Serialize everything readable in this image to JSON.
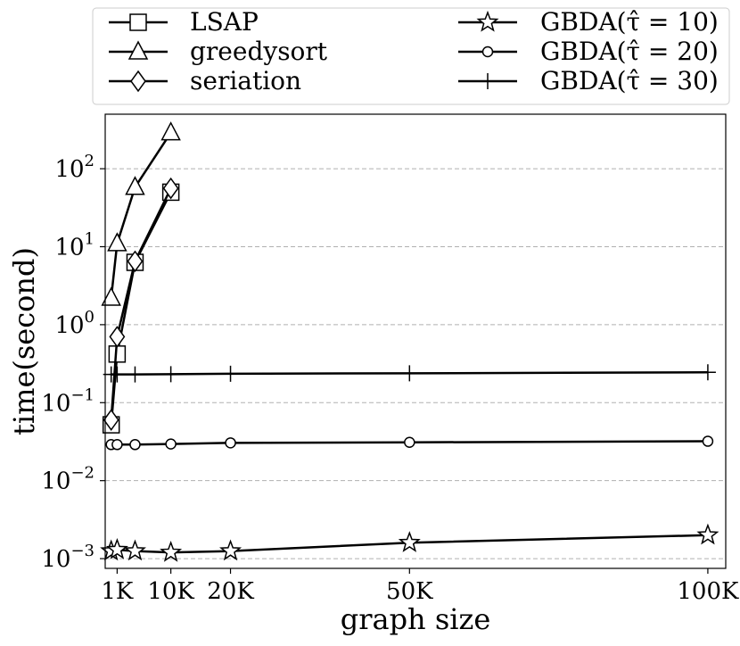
{
  "chart_data": {
    "type": "line",
    "xlabel": "graph size",
    "ylabel": "time(second)",
    "yscale": "log",
    "xlim": [
      -1000,
      103000
    ],
    "ylim": [
      0.00075,
      500
    ],
    "grid": "horizontal dashed",
    "legend_position": "top (above plot, two columns)",
    "x_ticks": [
      {
        "value": 1000,
        "label": "1K"
      },
      {
        "value": 10000,
        "label": "10K"
      },
      {
        "value": 20000,
        "label": "20K"
      },
      {
        "value": 50000,
        "label": "50K"
      },
      {
        "value": 100000,
        "label": "100K"
      }
    ],
    "y_ticks": [
      {
        "value": 0.001,
        "base": "10",
        "exp": "−3"
      },
      {
        "value": 0.01,
        "base": "10",
        "exp": "−2"
      },
      {
        "value": 0.1,
        "base": "10",
        "exp": "−1"
      },
      {
        "value": 1,
        "base": "10",
        "exp": "0"
      },
      {
        "value": 10,
        "base": "10",
        "exp": "1"
      },
      {
        "value": 100,
        "base": "10",
        "exp": "2"
      }
    ],
    "series": [
      {
        "name": "LSAP",
        "marker": "square",
        "x": [
          0,
          1000,
          4000,
          10000
        ],
        "y": [
          0.052,
          0.42,
          6.3,
          50
        ]
      },
      {
        "name": "greedysort",
        "marker": "triangle",
        "x": [
          0,
          1000,
          4000,
          10000
        ],
        "y": [
          2.2,
          11,
          58,
          290
        ]
      },
      {
        "name": "seriation",
        "marker": "diamond",
        "x": [
          0,
          1000,
          4000,
          10000
        ],
        "y": [
          0.06,
          0.7,
          6.5,
          56
        ]
      },
      {
        "name": "GBDA(τ̂ = 10)",
        "marker": "star",
        "x": [
          0,
          1000,
          4000,
          10000,
          20000,
          50000,
          100000
        ],
        "y": [
          0.00125,
          0.0013,
          0.00125,
          0.0012,
          0.00125,
          0.0016,
          0.002
        ]
      },
      {
        "name": "GBDA(τ̂ = 20)",
        "marker": "circle",
        "x": [
          0,
          1000,
          4000,
          10000,
          20000,
          50000,
          100000
        ],
        "y": [
          0.029,
          0.029,
          0.029,
          0.0295,
          0.0305,
          0.031,
          0.032
        ]
      },
      {
        "name": "GBDA(τ̂ = 30)",
        "marker": "plus",
        "x": [
          0,
          1000,
          4000,
          10000,
          20000,
          50000,
          100000
        ],
        "y": [
          0.23,
          0.23,
          0.23,
          0.232,
          0.235,
          0.238,
          0.245
        ]
      }
    ]
  },
  "legend": {
    "entries": [
      {
        "series": 0,
        "label": "LSAP"
      },
      {
        "series": 1,
        "label": "greedysort"
      },
      {
        "series": 2,
        "label": "seriation"
      },
      {
        "series": 3,
        "label": "GBDA(τ̂ = 10)"
      },
      {
        "series": 4,
        "label": "GBDA(τ̂ = 20)"
      },
      {
        "series": 5,
        "label": "GBDA(τ̂ = 30)"
      }
    ]
  }
}
